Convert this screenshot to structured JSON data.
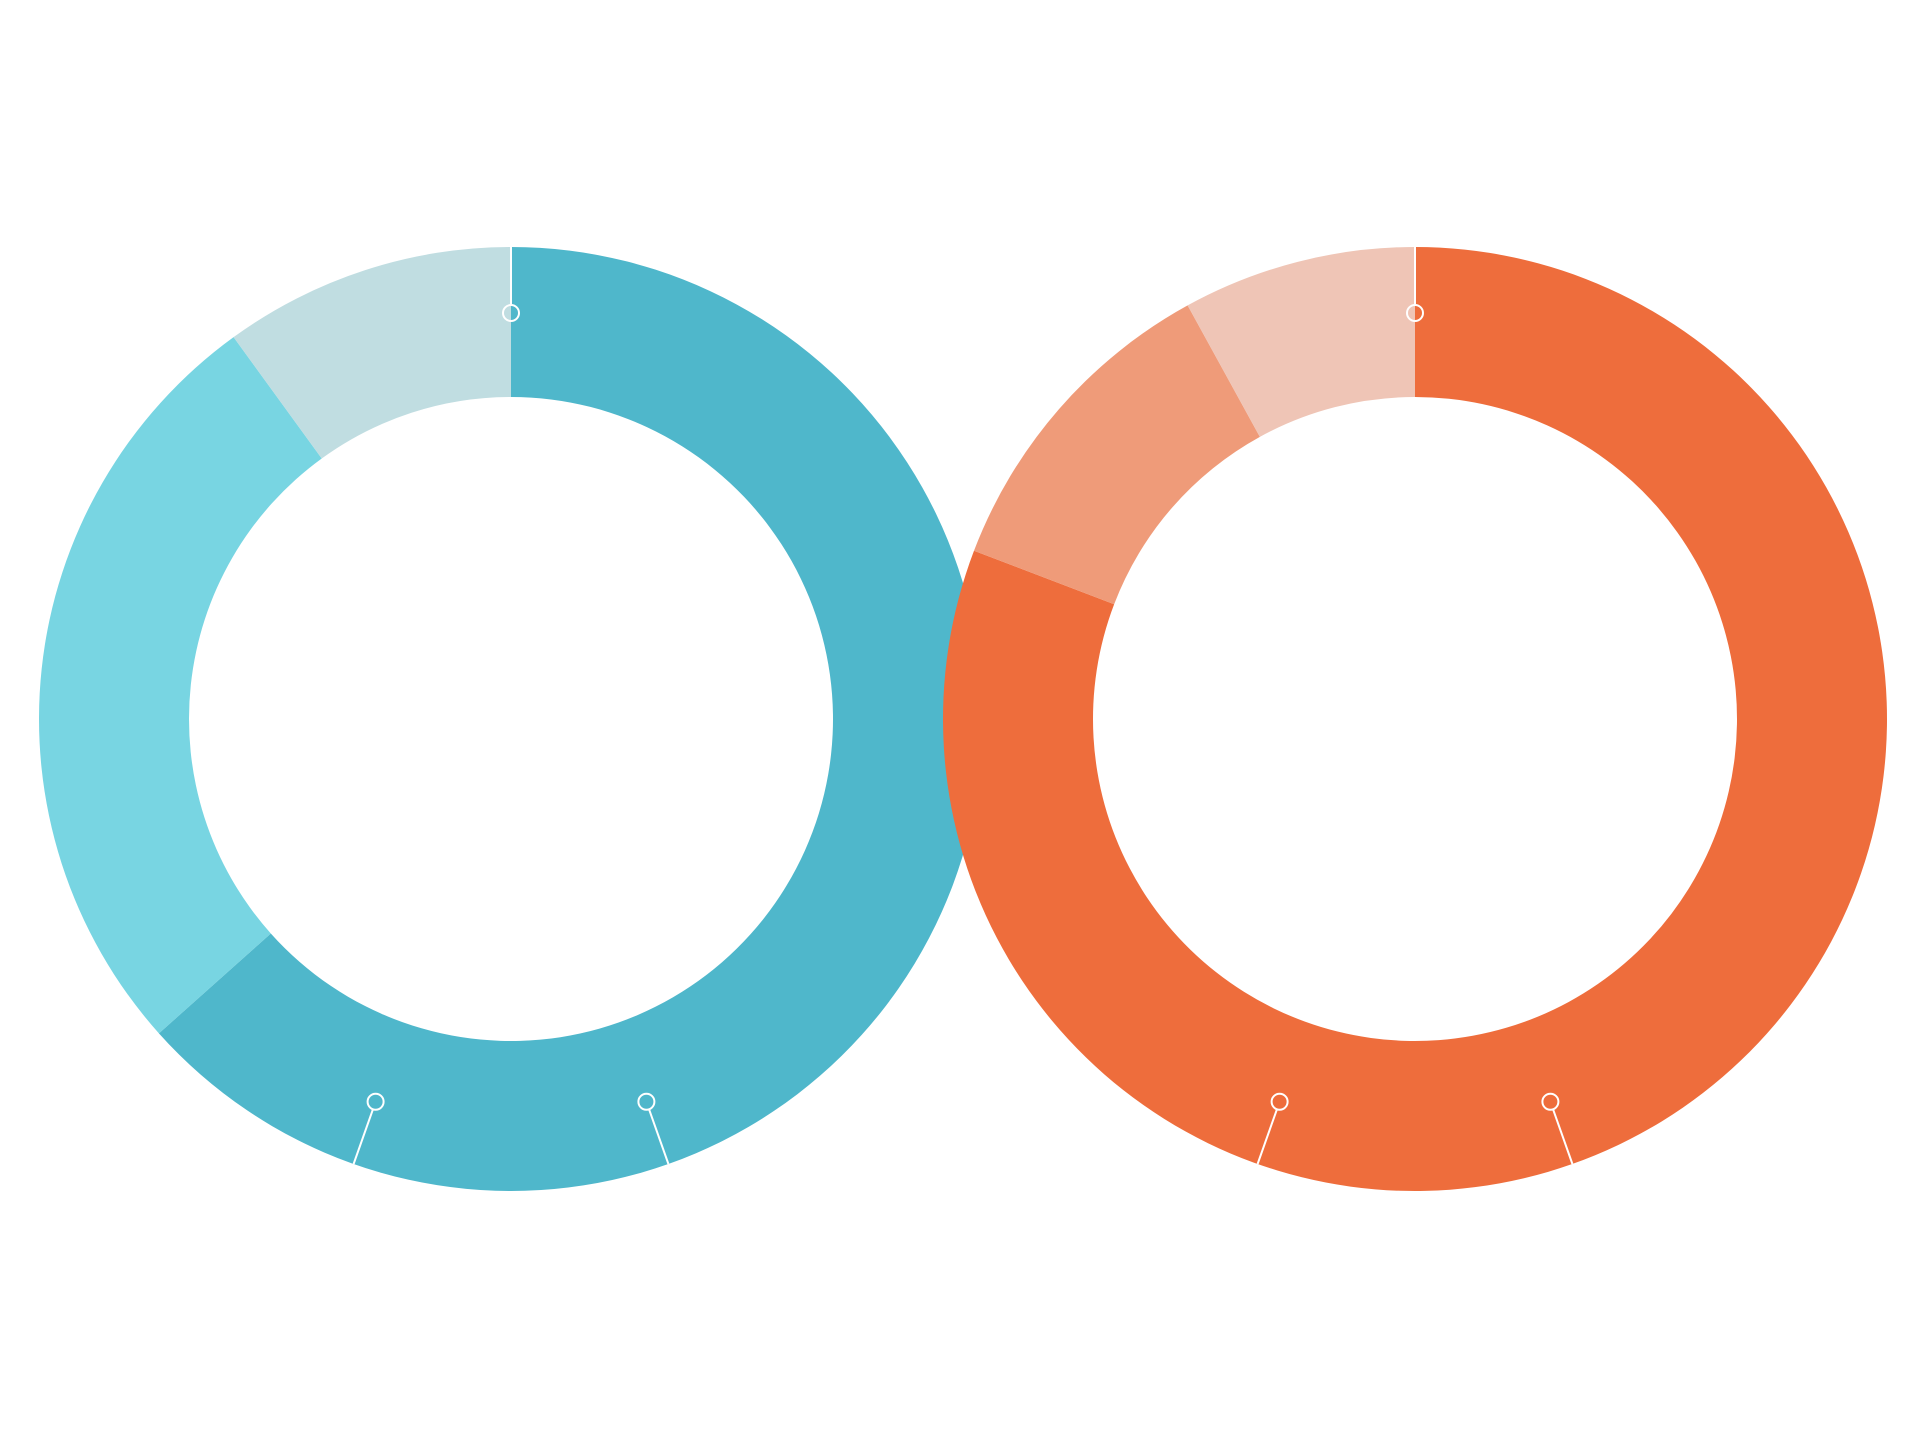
{
  "chart_data": [
    {
      "type": "pie",
      "style": "donut",
      "title": "",
      "categories": [
        "",
        "",
        ""
      ],
      "values": [
        63.4,
        26.6,
        10.0
      ],
      "colors": [
        "#4fb7cb",
        "#78d5e2",
        "#c0dde1"
      ],
      "legend": "none"
    },
    {
      "type": "pie",
      "style": "donut",
      "title": "",
      "categories": [
        "",
        "",
        ""
      ],
      "values": [
        80.8,
        11.2,
        8.0
      ],
      "colors": [
        "#ee6d3c",
        "#ef9b79",
        "#efc5b6"
      ],
      "legend": "none"
    }
  ]
}
